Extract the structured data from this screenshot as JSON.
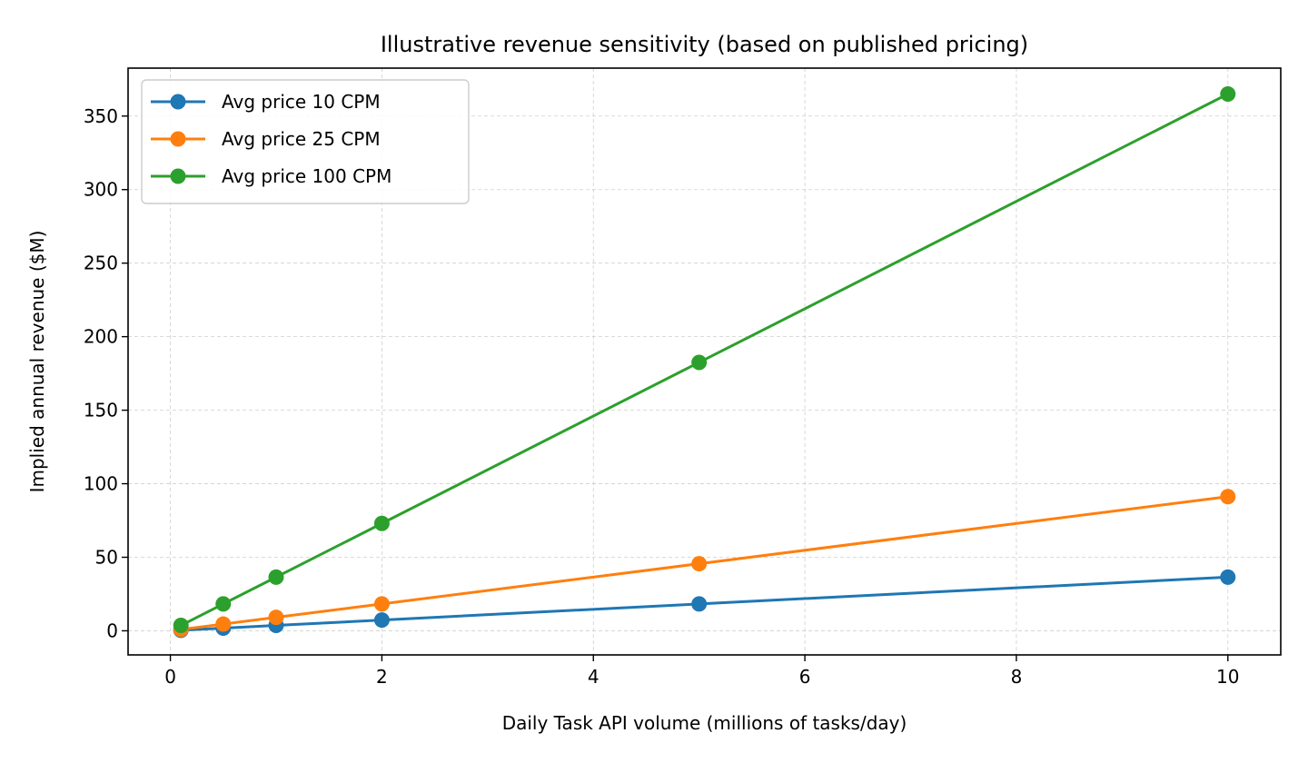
{
  "chart_data": {
    "type": "line",
    "title": "Illustrative revenue sensitivity (based on published pricing)",
    "xlabel": "Daily Task API volume (millions of tasks/day)",
    "ylabel": "Implied annual revenue ($M)",
    "x": [
      0.1,
      0.5,
      1,
      2,
      5,
      10
    ],
    "xlim": [
      -0.4,
      10.5
    ],
    "ylim": [
      -16.4,
      382.6
    ],
    "xticks": [
      0,
      2,
      4,
      6,
      8,
      10
    ],
    "yticks": [
      0,
      50,
      100,
      150,
      200,
      250,
      300,
      350
    ],
    "grid": true,
    "legend_position": "top-left",
    "series": [
      {
        "name": "Avg price 10 CPM",
        "color": "#1f77b4",
        "values": [
          0.365,
          1.825,
          3.65,
          7.3,
          18.25,
          36.5
        ]
      },
      {
        "name": "Avg price 25 CPM",
        "color": "#ff7f0e",
        "values": [
          0.9125,
          4.5625,
          9.125,
          18.25,
          45.625,
          91.25
        ]
      },
      {
        "name": "Avg price 100 CPM",
        "color": "#2ca02c",
        "values": [
          3.65,
          18.25,
          36.5,
          73,
          182.5,
          365
        ]
      }
    ]
  }
}
